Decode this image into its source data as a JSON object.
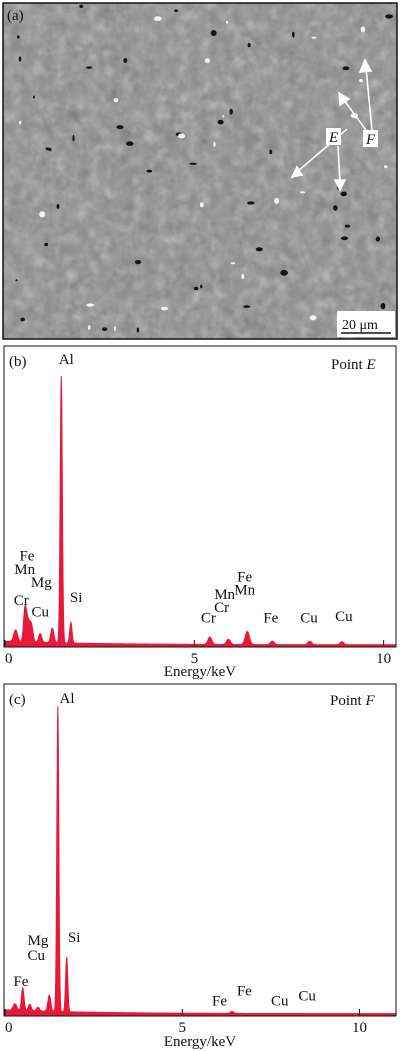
{
  "colors": {
    "spectrum": "#e8193a",
    "axis": "#111111",
    "sem_bg": "#8a8a8a"
  },
  "panel_a": {
    "label": "(a)",
    "scale_bar": "20 μm",
    "marker_e": "E",
    "marker_f": "F"
  },
  "chart_data": [
    {
      "type": "area",
      "panel_label": "(b)",
      "title": "",
      "annotation_prefix": "Point ",
      "annotation_point": "E",
      "xlabel": "Energy/keV",
      "ylabel": "",
      "xlim": [
        0,
        10.3
      ],
      "ylim": [
        0,
        1
      ],
      "xticks": [
        0,
        5,
        10
      ],
      "xtick_labels": [
        "0",
        "5",
        "10"
      ],
      "peaks": [
        {
          "x": 0.28,
          "y": 0.04,
          "w": 0.05
        },
        {
          "x": 0.52,
          "y": 0.09,
          "w": 0.035
        },
        {
          "x": 0.57,
          "y": 0.06,
          "w": 0.04
        },
        {
          "x": 0.63,
          "y": 0.045,
          "w": 0.04
        },
        {
          "x": 0.7,
          "y": 0.055,
          "w": 0.04
        },
        {
          "x": 0.93,
          "y": 0.03,
          "w": 0.04
        },
        {
          "x": 1.25,
          "y": 0.05,
          "w": 0.04
        },
        {
          "x": 1.486,
          "y": 0.91,
          "w": 0.028
        },
        {
          "x": 1.74,
          "y": 0.07,
          "w": 0.03
        },
        {
          "x": 5.41,
          "y": 0.025,
          "w": 0.05
        },
        {
          "x": 5.9,
          "y": 0.018,
          "w": 0.05
        },
        {
          "x": 6.4,
          "y": 0.045,
          "w": 0.055
        },
        {
          "x": 7.06,
          "y": 0.012,
          "w": 0.05
        },
        {
          "x": 8.05,
          "y": 0.012,
          "w": 0.05
        },
        {
          "x": 8.9,
          "y": 0.01,
          "w": 0.05
        }
      ],
      "element_labels": [
        {
          "text": "Al",
          "x": 1.62,
          "y": 0.96
        },
        {
          "text": "Fe",
          "x": 0.58,
          "y": 0.29
        },
        {
          "text": "Mn",
          "x": 0.52,
          "y": 0.245
        },
        {
          "text": "Mg",
          "x": 0.96,
          "y": 0.2
        },
        {
          "text": "Cr",
          "x": 0.43,
          "y": 0.14
        },
        {
          "text": "Cu",
          "x": 0.93,
          "y": 0.1
        },
        {
          "text": "Si",
          "x": 1.88,
          "y": 0.15
        },
        {
          "text": "Fe",
          "x": 6.33,
          "y": 0.22
        },
        {
          "text": "Mn",
          "x": 6.33,
          "y": 0.175
        },
        {
          "text": "Mn",
          "x": 5.8,
          "y": 0.16
        },
        {
          "text": "Cr",
          "x": 5.72,
          "y": 0.115
        },
        {
          "text": "Cr",
          "x": 5.37,
          "y": 0.08
        },
        {
          "text": "Fe",
          "x": 7.02,
          "y": 0.08
        },
        {
          "text": "Cu",
          "x": 8.03,
          "y": 0.08
        },
        {
          "text": "Cu",
          "x": 8.95,
          "y": 0.085
        }
      ]
    },
    {
      "type": "area",
      "panel_label": "(c)",
      "title": "",
      "annotation_prefix": "Point ",
      "annotation_point": "F",
      "xlabel": "Energy/keV",
      "ylabel": "",
      "xlim": [
        0,
        11
      ],
      "ylim": [
        0,
        1
      ],
      "xticks": [
        0,
        5,
        10
      ],
      "xtick_labels": [
        "0",
        "5",
        "10"
      ],
      "peaks": [
        {
          "x": 0.28,
          "y": 0.02,
          "w": 0.05
        },
        {
          "x": 0.5,
          "y": 0.07,
          "w": 0.035
        },
        {
          "x": 0.7,
          "y": 0.02,
          "w": 0.04
        },
        {
          "x": 0.93,
          "y": 0.012,
          "w": 0.04
        },
        {
          "x": 1.25,
          "y": 0.05,
          "w": 0.04
        },
        {
          "x": 1.49,
          "y": 0.94,
          "w": 0.028
        },
        {
          "x": 1.74,
          "y": 0.17,
          "w": 0.03
        },
        {
          "x": 6.4,
          "y": 0.006,
          "w": 0.05
        }
      ],
      "element_labels": [
        {
          "text": "Al",
          "x": 1.75,
          "y": 0.96
        },
        {
          "text": "Mg",
          "x": 0.93,
          "y": 0.215
        },
        {
          "text": "Cu",
          "x": 0.88,
          "y": 0.17
        },
        {
          "text": "Si",
          "x": 1.95,
          "y": 0.225
        },
        {
          "text": "Fe",
          "x": 0.45,
          "y": 0.09
        },
        {
          "text": "Fe",
          "x": 6.05,
          "y": 0.03
        },
        {
          "text": "Fe",
          "x": 6.75,
          "y": 0.06
        },
        {
          "text": "Cu",
          "x": 7.75,
          "y": 0.03
        },
        {
          "text": "Cu",
          "x": 8.52,
          "y": 0.045
        }
      ]
    }
  ]
}
